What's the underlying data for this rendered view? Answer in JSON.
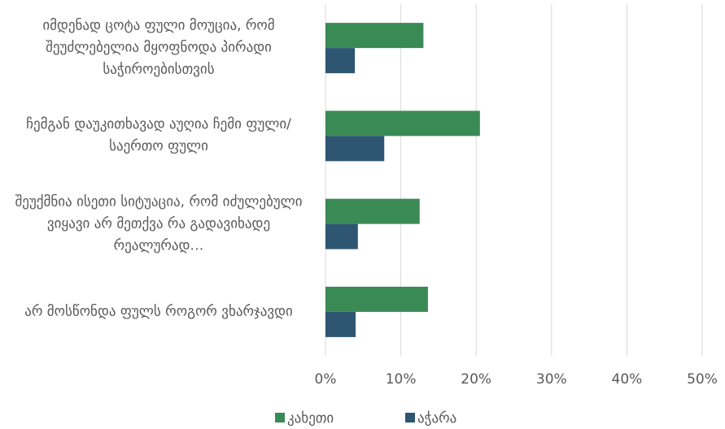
{
  "chart_data": {
    "type": "bar",
    "orientation": "horizontal",
    "categories": [
      "იმდენად ცოტა ფული მოუცია, რომ შეუძლებელია მყოფნოდა პირადი საჭიროებისთვის",
      "ჩემგან დაუკითხავად აუღია ჩემი ფული/საერთო ფული",
      "შეუქმნია ისეთი სიტუაცია, რომ იძულებული ვიყავი არ მეთქვა რა გადავიხადე რეალურად…",
      "არ მოსწონდა ფულს როგორ ვხარჯავდი"
    ],
    "series": [
      {
        "name": "კახეთი",
        "color": "#3a8a55",
        "values": [
          13,
          20.5,
          12.5,
          13.6
        ]
      },
      {
        "name": "აჭარა",
        "color": "#2e5572",
        "values": [
          3.9,
          7.8,
          4.3,
          4.0
        ]
      }
    ],
    "xlim": [
      0,
      50
    ],
    "xticks": [
      {
        "value": 0,
        "label": "0%"
      },
      {
        "value": 10,
        "label": "10%"
      },
      {
        "value": 20,
        "label": "20%"
      },
      {
        "value": 30,
        "label": "30%"
      },
      {
        "value": 40,
        "label": "40%"
      },
      {
        "value": 50,
        "label": "50%"
      }
    ],
    "grid": true,
    "legend": "bottom"
  }
}
